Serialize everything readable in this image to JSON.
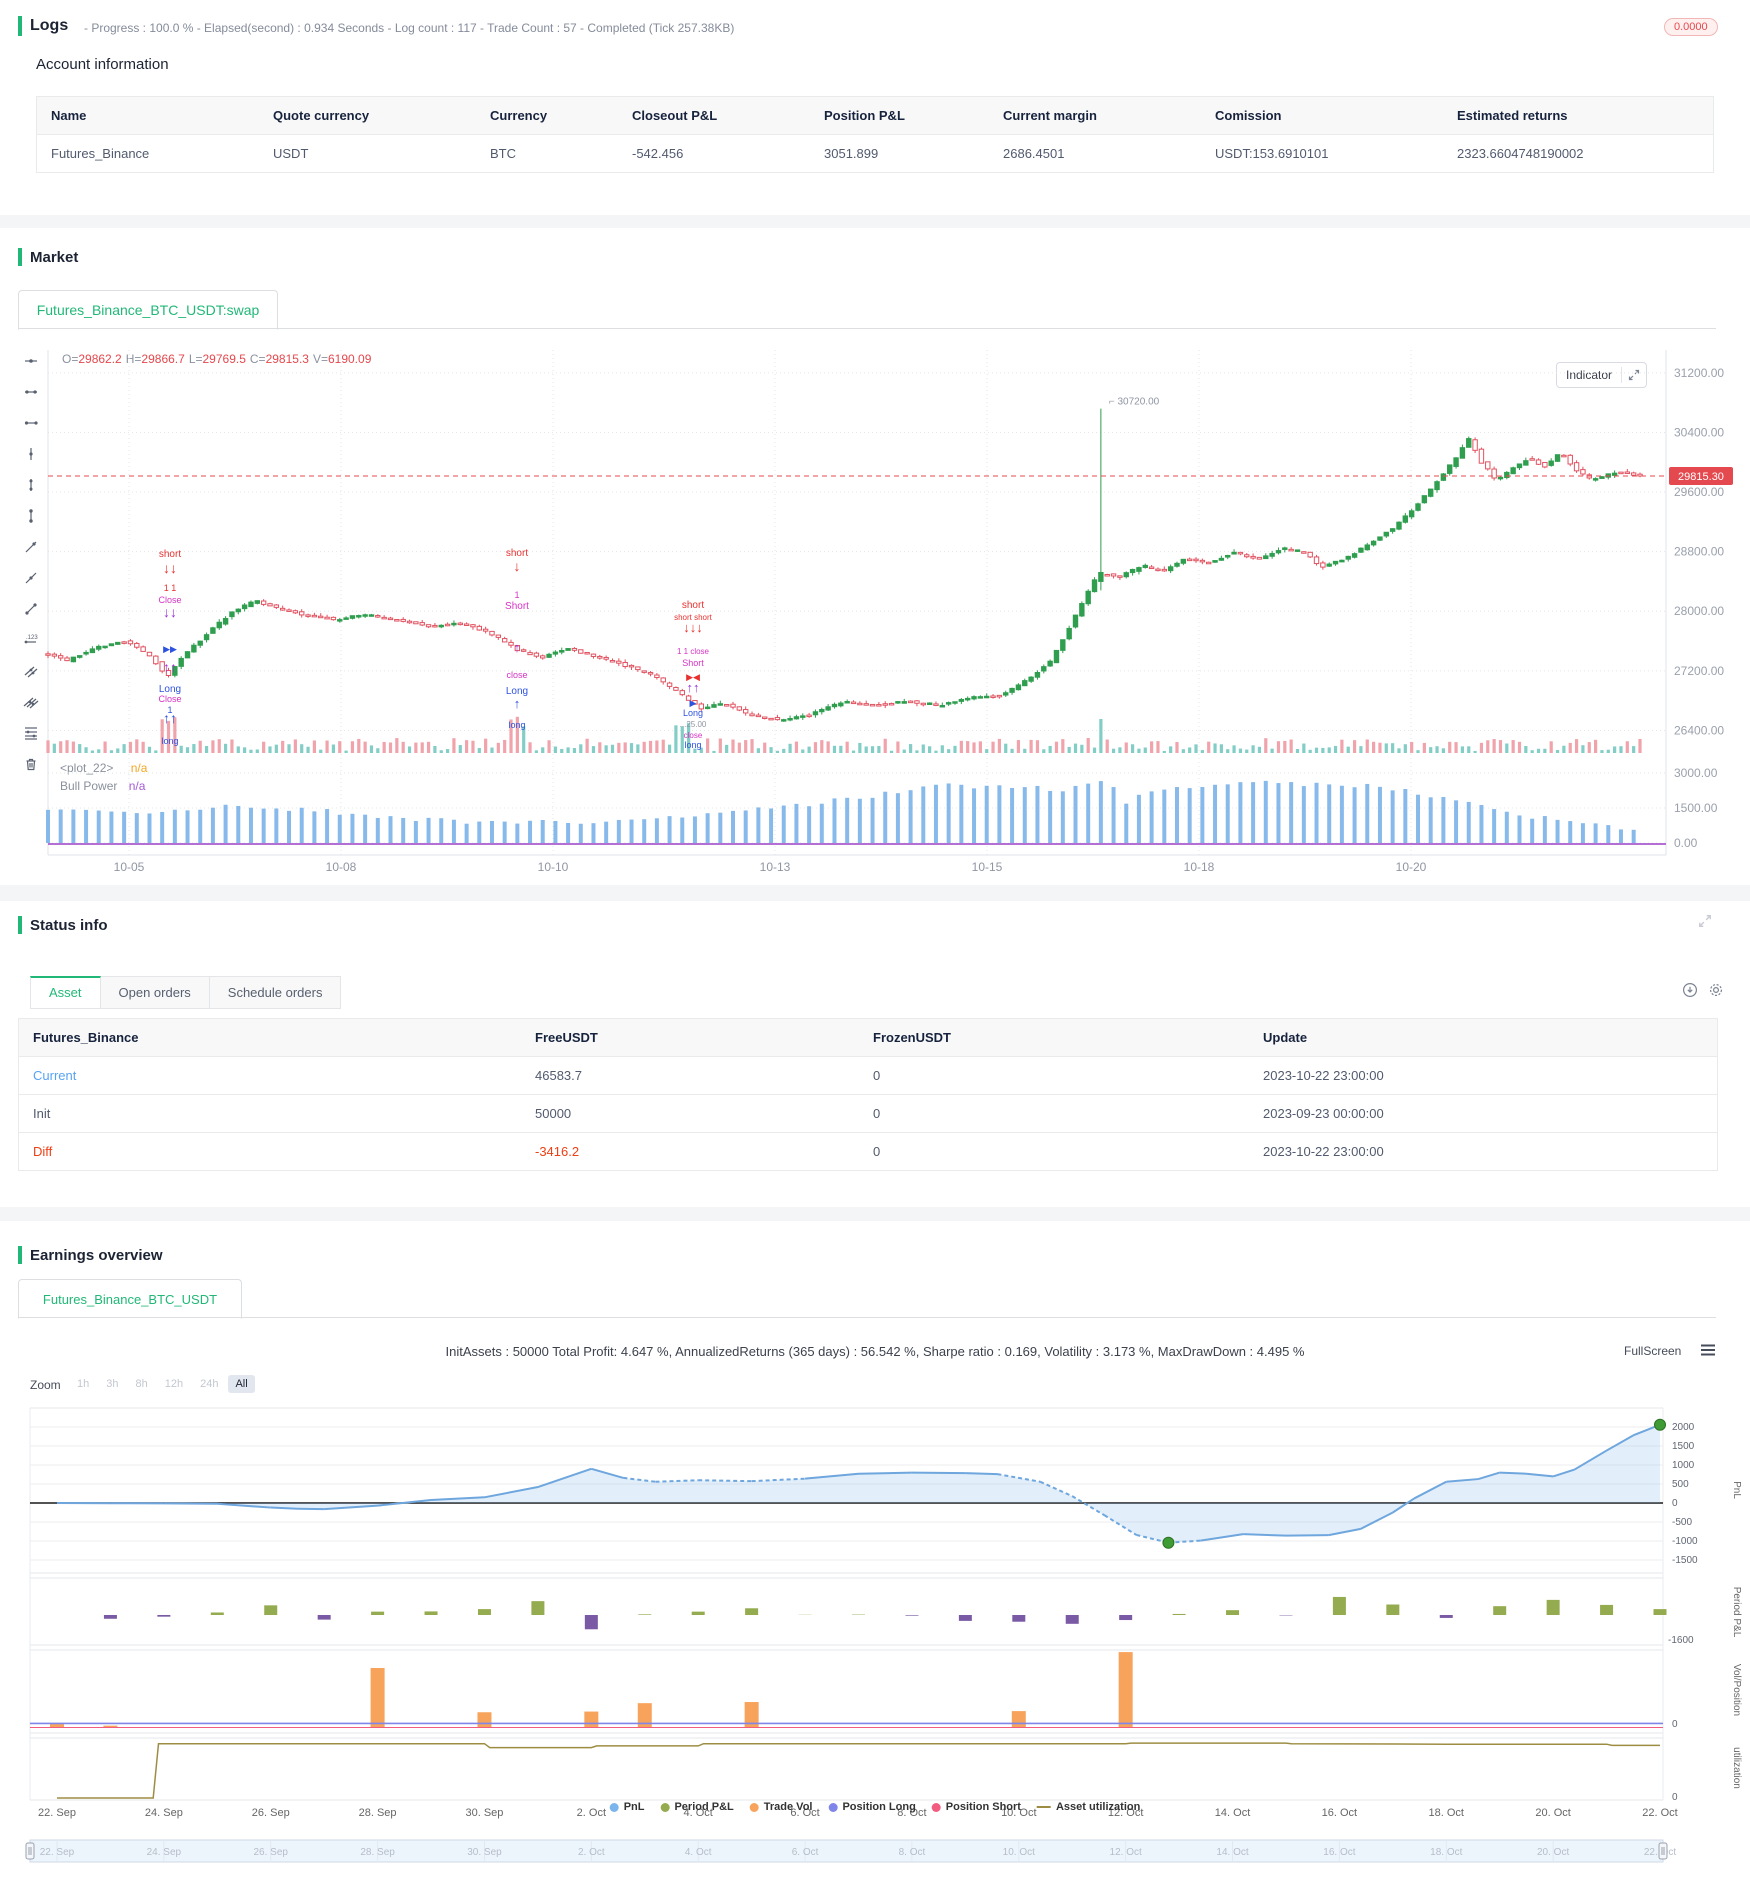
{
  "logs": {
    "title": "Logs",
    "progress_summary": "- Progress : 100.0 % - Elapsed(second) : 0.934  Seconds - Log count : 117 - Trade Count : 57 - Completed (Tick 257.38KB)",
    "badge": "0.0000"
  },
  "account": {
    "heading": "Account information",
    "columns": [
      "Name",
      "Quote currency",
      "Currency",
      "Closeout P&L",
      "Position P&L",
      "Current margin",
      "Comission",
      "Estimated returns"
    ],
    "rows": [
      [
        "Futures_Binance",
        "USDT",
        "BTC",
        "-542.456",
        "3051.899",
        "2686.4501",
        "USDT:153.6910101",
        "2323.6604748190002"
      ]
    ]
  },
  "market": {
    "title": "Market",
    "tab": "Futures_Binance_BTC_USDT:swap",
    "indicator_label": "Indicator",
    "ohlc": [
      {
        "k": "O=",
        "v": "29862.2"
      },
      {
        "k": "H=",
        "v": "29866.7"
      },
      {
        "k": "L=",
        "v": "29769.5"
      },
      {
        "k": "C=",
        "v": "29815.3"
      },
      {
        "k": "V=",
        "v": "6190.09"
      }
    ],
    "toolbar_icons": [
      "crosshair-icon",
      "horizontal-segment-icon",
      "horizontal-ray-icon",
      "vertical-segment-icon",
      "vertical-dots-icon",
      "vertical-range-icon",
      "trend-line-icon",
      "ray-line-icon",
      "segment-line-icon",
      "price-note-icon",
      "parallel-lines-icon",
      "multi-parallel-lines-icon",
      "horizontal-levels-icon",
      "trash-icon"
    ],
    "plot_legend": [
      {
        "label": "<plot_22>",
        "value": "n/a",
        "color": "#f5a623"
      },
      {
        "label": "Bull Power",
        "value": "n/a",
        "color": "#a55bd4"
      }
    ],
    "last_price_tag": "29815.30",
    "spike_label": "30720.00"
  },
  "status": {
    "title": "Status info",
    "tabs": [
      "Asset",
      "Open orders",
      "Schedule orders"
    ],
    "active_tab": "Asset",
    "columns": [
      "Futures_Binance",
      "FreeUSDT",
      "FrozenUSDT",
      "Update"
    ],
    "rows": [
      {
        "name": "Current",
        "free": "46583.7",
        "frozen": "0",
        "update": "2023-10-22 23:00:00",
        "tone": "link"
      },
      {
        "name": "Init",
        "free": "50000",
        "frozen": "0",
        "update": "2023-09-23 00:00:00",
        "tone": "normal"
      },
      {
        "name": "Diff",
        "free": "-3416.2",
        "frozen": "0",
        "update": "2023-10-22 23:00:00",
        "tone": "danger"
      }
    ]
  },
  "earnings": {
    "title": "Earnings overview",
    "tab": "Futures_Binance_BTC_USDT",
    "stats": "InitAssets : 50000 Total Profit: 4.647 %, AnnualizedReturns (365 days) : 56.542 %, Sharpe ratio : 0.169, Volatility : 3.173 %, MaxDrawDown : 4.495 %",
    "fullscreen_label": "FullScreen",
    "zoom_label": "Zoom",
    "zoom_buttons": [
      "1h",
      "3h",
      "8h",
      "12h",
      "24h",
      "All"
    ],
    "active_zoom": "All"
  },
  "chart_data": [
    {
      "type": "candlestick",
      "title": "Futures_Binance_BTC_USDT:swap",
      "x_ticks": [
        "10-05",
        "10-08",
        "10-10",
        "10-13",
        "10-15",
        "10-18",
        "10-20"
      ],
      "price_ticks": [
        31200,
        30400,
        29600,
        28800,
        28000,
        27200,
        26400
      ],
      "last_price": 29815.3,
      "spike_high": 30720,
      "colors": {
        "up": "#2f9e4f",
        "down": "#e15260",
        "vol_up": "#82cdc5",
        "vol_down": "#f0a3ab",
        "hist": "#72aee8",
        "baseline": "#b36fd4",
        "last_line": "#e4494f"
      },
      "close_path": [
        [
          0,
          27420
        ],
        [
          0.012,
          27330
        ],
        [
          0.03,
          27520
        ],
        [
          0.05,
          27600
        ],
        [
          0.065,
          27380
        ],
        [
          0.075,
          27120
        ],
        [
          0.085,
          27400
        ],
        [
          0.1,
          27700
        ],
        [
          0.115,
          27980
        ],
        [
          0.13,
          28140
        ],
        [
          0.145,
          28040
        ],
        [
          0.16,
          27960
        ],
        [
          0.18,
          27890
        ],
        [
          0.2,
          27960
        ],
        [
          0.22,
          27880
        ],
        [
          0.24,
          27800
        ],
        [
          0.26,
          27840
        ],
        [
          0.28,
          27680
        ],
        [
          0.295,
          27480
        ],
        [
          0.31,
          27380
        ],
        [
          0.325,
          27500
        ],
        [
          0.34,
          27420
        ],
        [
          0.36,
          27290
        ],
        [
          0.38,
          27140
        ],
        [
          0.395,
          26920
        ],
        [
          0.41,
          26700
        ],
        [
          0.425,
          26770
        ],
        [
          0.44,
          26610
        ],
        [
          0.46,
          26540
        ],
        [
          0.48,
          26620
        ],
        [
          0.5,
          26790
        ],
        [
          0.52,
          26740
        ],
        [
          0.54,
          26790
        ],
        [
          0.56,
          26740
        ],
        [
          0.58,
          26840
        ],
        [
          0.6,
          26880
        ],
        [
          0.615,
          27080
        ],
        [
          0.63,
          27330
        ],
        [
          0.645,
          27920
        ],
        [
          0.657,
          28420
        ],
        [
          0.663,
          28510
        ],
        [
          0.672,
          28460
        ],
        [
          0.688,
          28610
        ],
        [
          0.7,
          28540
        ],
        [
          0.715,
          28710
        ],
        [
          0.73,
          28640
        ],
        [
          0.745,
          28800
        ],
        [
          0.76,
          28690
        ],
        [
          0.775,
          28850
        ],
        [
          0.79,
          28790
        ],
        [
          0.8,
          28590
        ],
        [
          0.815,
          28710
        ],
        [
          0.83,
          28910
        ],
        [
          0.845,
          29120
        ],
        [
          0.858,
          29380
        ],
        [
          0.87,
          29680
        ],
        [
          0.882,
          29990
        ],
        [
          0.893,
          30330
        ],
        [
          0.9,
          30010
        ],
        [
          0.91,
          29760
        ],
        [
          0.92,
          29910
        ],
        [
          0.93,
          30060
        ],
        [
          0.94,
          29940
        ],
        [
          0.95,
          30140
        ],
        [
          0.96,
          29890
        ],
        [
          0.97,
          29760
        ],
        [
          0.985,
          29870
        ],
        [
          1,
          29815.3
        ]
      ],
      "bull_power": {
        "name": "Bull Power",
        "axis_ticks": [
          3000,
          1500,
          0
        ],
        "path": [
          [
            0,
            1350
          ],
          [
            0.05,
            1280
          ],
          [
            0.09,
            1480
          ],
          [
            0.13,
            1580
          ],
          [
            0.17,
            1380
          ],
          [
            0.22,
            1050
          ],
          [
            0.27,
            900
          ],
          [
            0.32,
            880
          ],
          [
            0.37,
            1000
          ],
          [
            0.42,
            1250
          ],
          [
            0.47,
            1600
          ],
          [
            0.52,
            2050
          ],
          [
            0.56,
            2450
          ],
          [
            0.6,
            2400
          ],
          [
            0.64,
            2300
          ],
          [
            0.658,
            2520
          ],
          [
            0.665,
            2950
          ],
          [
            0.675,
            1500
          ],
          [
            0.69,
            2300
          ],
          [
            0.72,
            2480
          ],
          [
            0.75,
            2600
          ],
          [
            0.78,
            2550
          ],
          [
            0.81,
            2500
          ],
          [
            0.84,
            2380
          ],
          [
            0.87,
            2050
          ],
          [
            0.9,
            1600
          ],
          [
            0.93,
            1150
          ],
          [
            0.96,
            850
          ],
          [
            1,
            620
          ]
        ]
      },
      "marker_clusters": [
        {
          "x": 170,
          "items": [
            [
              557,
              "short",
              "red",
              10
            ],
            [
              573,
              "↓↓",
              "red",
              14
            ],
            [
              591,
              "1 1",
              "red",
              9
            ],
            [
              603,
              "Close",
              "mag",
              9
            ],
            [
              617,
              "↓↓",
              "pur",
              14
            ],
            [
              652,
              "▶▶",
              "blue",
              9
            ],
            [
              672,
              "↑↑",
              "pur",
              14
            ],
            [
              692,
              "Long",
              "blue",
              10
            ],
            [
              702,
              "Close",
              "mag",
              9
            ],
            [
              713,
              "1",
              "blue",
              9
            ],
            [
              723,
              "↑↑",
              "blue",
              14
            ],
            [
              744,
              "long",
              "blue",
              9
            ]
          ]
        },
        {
          "x": 517,
          "items": [
            [
              556,
              "short",
              "red",
              10
            ],
            [
              571,
              "↓",
              "red",
              14
            ],
            [
              598,
              "1",
              "mag",
              9
            ],
            [
              609,
              "Short",
              "mag",
              10
            ],
            [
              652,
              "↑",
              "pur",
              13
            ],
            [
              678,
              "close",
              "mag",
              9
            ],
            [
              694,
              "Long",
              "blue",
              10
            ],
            [
              708,
              "↑",
              "blue",
              13
            ],
            [
              728,
              "long",
              "blue",
              9
            ]
          ]
        },
        {
          "x": 693,
          "items": [
            [
              608,
              "short",
              "red",
              10
            ],
            [
              620,
              "short short",
              "red",
              8
            ],
            [
              632,
              "↓↓↓",
              "red",
              13
            ],
            [
              654,
              "1 1 close",
              "mag",
              8
            ],
            [
              666,
              "Short",
              "mag",
              9
            ],
            [
              680,
              "▶◀",
              "red",
              9
            ],
            [
              692,
              "↑↑",
              "pur",
              13
            ],
            [
              706,
              "▶",
              "blue",
              9
            ],
            [
              716,
              "Long",
              "blue",
              9
            ],
            [
              727,
              "...25.00",
              "gray",
              8
            ],
            [
              738,
              "close",
              "mag",
              8
            ],
            [
              748,
              "long",
              "blue",
              9
            ]
          ]
        }
      ]
    },
    {
      "type": "mixed",
      "x_labels": [
        "22. Sep",
        "24. Sep",
        "26. Sep",
        "28. Sep",
        "30. Sep",
        "2. Oct",
        "4. Oct",
        "6. Oct",
        "8. Oct",
        "10. Oct",
        "12. Oct",
        "14. Oct",
        "16. Oct",
        "18. Oct",
        "20. Oct",
        "22. Oct"
      ],
      "axis_titles": [
        "PnL",
        "Period P&L",
        "Vol/Position",
        "utilization"
      ],
      "pnl": {
        "ticks": [
          2000,
          1500,
          1000,
          500,
          0,
          -500,
          -1000,
          -1500
        ],
        "points": [
          [
            0,
            0
          ],
          [
            1,
            -5
          ],
          [
            2,
            -10
          ],
          [
            3,
            -20
          ],
          [
            4,
            -120
          ],
          [
            4.5,
            -150
          ],
          [
            5,
            -160
          ],
          [
            6,
            -70
          ],
          [
            7,
            80
          ],
          [
            8,
            150
          ],
          [
            9,
            420
          ],
          [
            10,
            900
          ],
          [
            10.6,
            660
          ],
          [
            11.2,
            560
          ],
          [
            12,
            600
          ],
          [
            13,
            575
          ],
          [
            14,
            640
          ],
          [
            15,
            770
          ],
          [
            16,
            800
          ],
          [
            17,
            785
          ],
          [
            17.6,
            760
          ],
          [
            18.4,
            560
          ],
          [
            19,
            180
          ],
          [
            19.6,
            -320
          ],
          [
            20.2,
            -840
          ],
          [
            20.8,
            -1045
          ],
          [
            21.4,
            -990
          ],
          [
            22.2,
            -820
          ],
          [
            23,
            -860
          ],
          [
            23.8,
            -845
          ],
          [
            24.4,
            -680
          ],
          [
            25,
            -250
          ],
          [
            25.4,
            120
          ],
          [
            26,
            560
          ],
          [
            26.6,
            630
          ],
          [
            27,
            800
          ],
          [
            27.5,
            770
          ],
          [
            28,
            700
          ],
          [
            28.4,
            880
          ],
          [
            29,
            1380
          ],
          [
            29.5,
            1780
          ],
          [
            30,
            2060
          ]
        ],
        "dash_ranges": [
          [
            10.6,
            14
          ],
          [
            17.6,
            21.4
          ]
        ],
        "min_dot": [
          20.8,
          -1045
        ],
        "end_dot": [
          30,
          2060
        ]
      },
      "period_pnl": {
        "values": [
          0,
          -90,
          -40,
          60,
          230,
          -110,
          80,
          85,
          140,
          330,
          -340,
          15,
          80,
          160,
          5,
          10,
          -15,
          -140,
          -160,
          -210,
          -120,
          25,
          115,
          -10,
          430,
          250,
          -70,
          210,
          360,
          240,
          140
        ],
        "axis_label": "-1600"
      },
      "trade_vol": {
        "values": [
          130,
          60,
          0,
          0,
          0,
          0,
          2600,
          0,
          650,
          0,
          680,
          1050,
          0,
          1100,
          0,
          0,
          0,
          0,
          700,
          0,
          3300,
          0,
          0,
          0,
          0,
          0,
          0,
          0,
          0,
          0,
          0
        ],
        "axis_label": "0"
      },
      "position_long": 0.6,
      "position_short": 0,
      "utilization": {
        "points": [
          [
            0,
            0
          ],
          [
            1.8,
            0
          ],
          [
            1.9,
            97
          ],
          [
            8,
            97
          ],
          [
            8.1,
            90
          ],
          [
            10,
            90
          ],
          [
            10.1,
            93
          ],
          [
            12,
            93
          ],
          [
            12.1,
            97
          ],
          [
            20,
            97
          ],
          [
            20.1,
            98
          ],
          [
            23,
            98
          ],
          [
            23.1,
            97
          ],
          [
            26,
            96
          ],
          [
            29,
            96
          ],
          [
            29.1,
            94
          ],
          [
            30,
            94
          ]
        ],
        "axis_label": "0"
      },
      "legend": [
        {
          "name": "PnL",
          "color": "#7cb5ec",
          "marker": "circle"
        },
        {
          "name": "Period P&L",
          "color": "#95ab4f",
          "marker": "circle"
        },
        {
          "name": "Trade Vol",
          "color": "#f7a35c",
          "marker": "circle"
        },
        {
          "name": "Position Long",
          "color": "#8085e9",
          "marker": "circle"
        },
        {
          "name": "Position Short",
          "color": "#f15c80",
          "marker": "circle"
        },
        {
          "name": "Asset utilization",
          "color": "#9d8d43",
          "marker": "line"
        }
      ]
    }
  ]
}
